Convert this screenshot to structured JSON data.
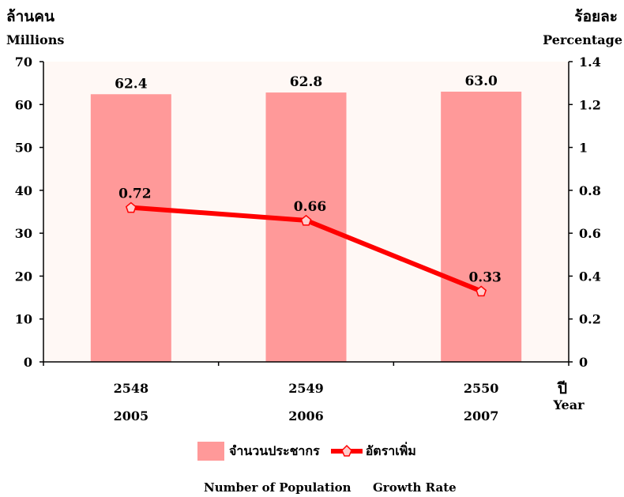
{
  "chart_data": {
    "type": "bar",
    "categories_th": [
      "2548",
      "2549",
      "2550"
    ],
    "categories_en": [
      "2005",
      "2006",
      "2007"
    ],
    "series": [
      {
        "name": "จำนวนประชากร",
        "name_en": "Number of Population",
        "type": "bar",
        "axis": "left",
        "values": [
          62.4,
          62.8,
          63.0
        ],
        "color": "#ff9999"
      },
      {
        "name": "อัตราเพิ่ม",
        "name_en": "Growth Rate",
        "type": "line",
        "axis": "right",
        "values": [
          0.72,
          0.66,
          0.33
        ],
        "color": "#ff0000"
      }
    ],
    "value_labels_bar": [
      "62.4",
      "62.8",
      "63.0"
    ],
    "value_labels_line": [
      "0.72",
      "0.66",
      "0.33"
    ],
    "y_left": {
      "label_th": "ล้านคน",
      "label_en": "Millions",
      "range": [
        0,
        70
      ],
      "ticks": [
        "0",
        "10",
        "20",
        "30",
        "40",
        "50",
        "60",
        "70"
      ]
    },
    "y_right": {
      "label_th": "ร้อยละ",
      "label_en": "Percentage",
      "range": [
        0,
        1.4
      ],
      "ticks": [
        "0",
        "0.2",
        "0.4",
        "0.6",
        "0.8",
        "1",
        "1.2",
        "1.4"
      ]
    },
    "x_axis": {
      "label_th": "ปี",
      "label_en": "Year"
    },
    "plot_background": "#fff8f5",
    "grid": false,
    "legend_position": "bottom"
  }
}
